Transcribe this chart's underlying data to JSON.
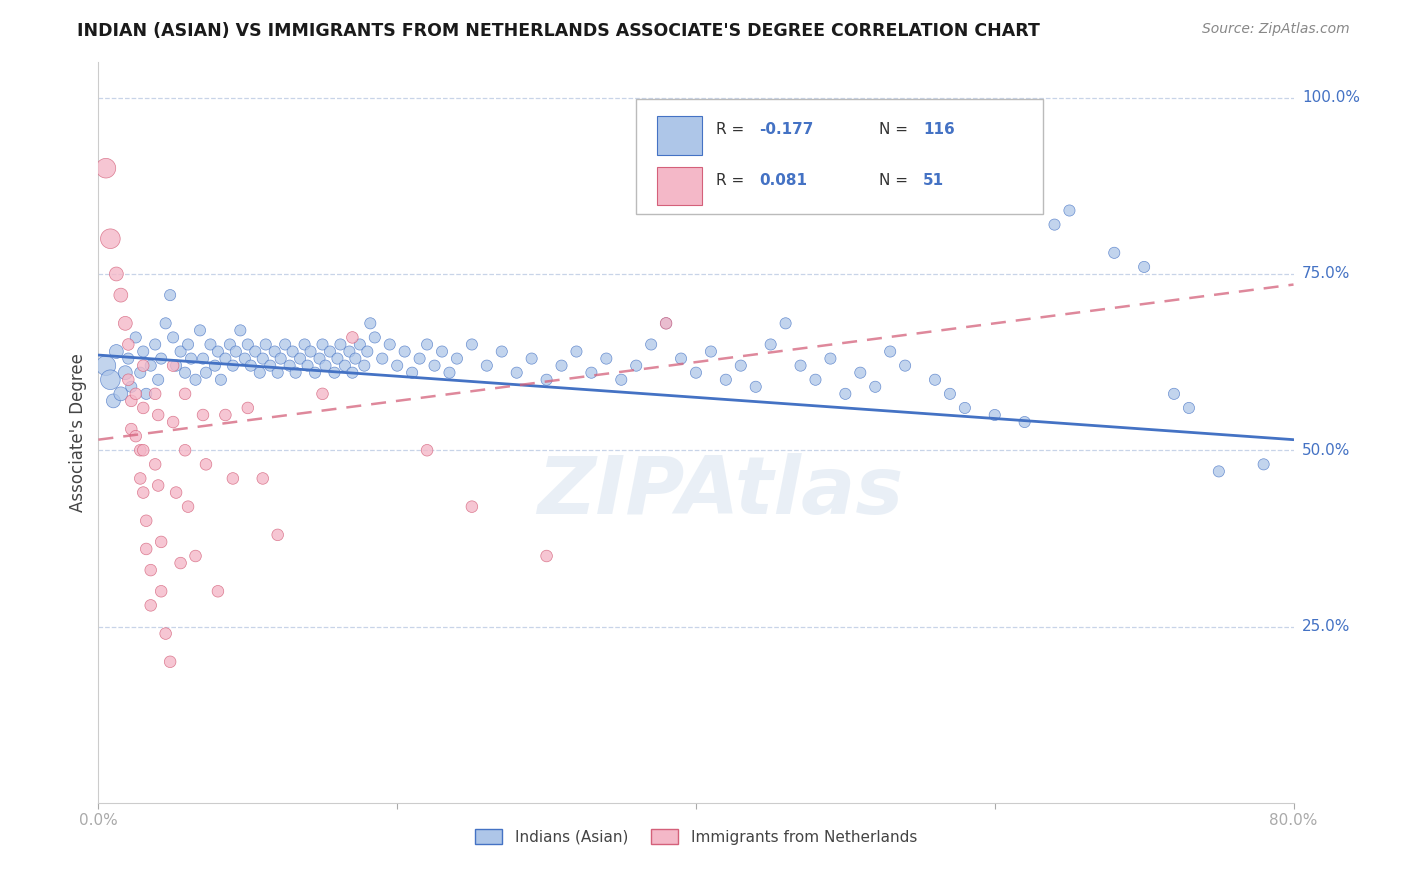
{
  "title": "INDIAN (ASIAN) VS IMMIGRANTS FROM NETHERLANDS ASSOCIATE'S DEGREE CORRELATION CHART",
  "source": "Source: ZipAtlas.com",
  "ylabel": "Associate's Degree",
  "legend_label_blue": "Indians (Asian)",
  "legend_label_pink": "Immigrants from Netherlands",
  "R_blue": "-0.177",
  "N_blue": "116",
  "R_pink": "0.081",
  "N_pink": "51",
  "watermark": "ZIPAtlas",
  "blue_color": "#aec6e8",
  "blue_line_color": "#4472c4",
  "pink_color": "#f4b8c8",
  "pink_line_color": "#d4607a",
  "background_color": "#ffffff",
  "grid_color": "#c8d4e8",
  "blue_trend": [
    0.635,
    0.515
  ],
  "pink_trend": [
    0.515,
    0.735
  ],
  "blue_scatter": [
    [
      0.005,
      0.62
    ],
    [
      0.008,
      0.6
    ],
    [
      0.01,
      0.57
    ],
    [
      0.012,
      0.64
    ],
    [
      0.015,
      0.58
    ],
    [
      0.018,
      0.61
    ],
    [
      0.02,
      0.63
    ],
    [
      0.022,
      0.59
    ],
    [
      0.025,
      0.66
    ],
    [
      0.028,
      0.61
    ],
    [
      0.03,
      0.64
    ],
    [
      0.032,
      0.58
    ],
    [
      0.035,
      0.62
    ],
    [
      0.038,
      0.65
    ],
    [
      0.04,
      0.6
    ],
    [
      0.042,
      0.63
    ],
    [
      0.045,
      0.68
    ],
    [
      0.048,
      0.72
    ],
    [
      0.05,
      0.66
    ],
    [
      0.052,
      0.62
    ],
    [
      0.055,
      0.64
    ],
    [
      0.058,
      0.61
    ],
    [
      0.06,
      0.65
    ],
    [
      0.062,
      0.63
    ],
    [
      0.065,
      0.6
    ],
    [
      0.068,
      0.67
    ],
    [
      0.07,
      0.63
    ],
    [
      0.072,
      0.61
    ],
    [
      0.075,
      0.65
    ],
    [
      0.078,
      0.62
    ],
    [
      0.08,
      0.64
    ],
    [
      0.082,
      0.6
    ],
    [
      0.085,
      0.63
    ],
    [
      0.088,
      0.65
    ],
    [
      0.09,
      0.62
    ],
    [
      0.092,
      0.64
    ],
    [
      0.095,
      0.67
    ],
    [
      0.098,
      0.63
    ],
    [
      0.1,
      0.65
    ],
    [
      0.102,
      0.62
    ],
    [
      0.105,
      0.64
    ],
    [
      0.108,
      0.61
    ],
    [
      0.11,
      0.63
    ],
    [
      0.112,
      0.65
    ],
    [
      0.115,
      0.62
    ],
    [
      0.118,
      0.64
    ],
    [
      0.12,
      0.61
    ],
    [
      0.122,
      0.63
    ],
    [
      0.125,
      0.65
    ],
    [
      0.128,
      0.62
    ],
    [
      0.13,
      0.64
    ],
    [
      0.132,
      0.61
    ],
    [
      0.135,
      0.63
    ],
    [
      0.138,
      0.65
    ],
    [
      0.14,
      0.62
    ],
    [
      0.142,
      0.64
    ],
    [
      0.145,
      0.61
    ],
    [
      0.148,
      0.63
    ],
    [
      0.15,
      0.65
    ],
    [
      0.152,
      0.62
    ],
    [
      0.155,
      0.64
    ],
    [
      0.158,
      0.61
    ],
    [
      0.16,
      0.63
    ],
    [
      0.162,
      0.65
    ],
    [
      0.165,
      0.62
    ],
    [
      0.168,
      0.64
    ],
    [
      0.17,
      0.61
    ],
    [
      0.172,
      0.63
    ],
    [
      0.175,
      0.65
    ],
    [
      0.178,
      0.62
    ],
    [
      0.18,
      0.64
    ],
    [
      0.182,
      0.68
    ],
    [
      0.185,
      0.66
    ],
    [
      0.19,
      0.63
    ],
    [
      0.195,
      0.65
    ],
    [
      0.2,
      0.62
    ],
    [
      0.205,
      0.64
    ],
    [
      0.21,
      0.61
    ],
    [
      0.215,
      0.63
    ],
    [
      0.22,
      0.65
    ],
    [
      0.225,
      0.62
    ],
    [
      0.23,
      0.64
    ],
    [
      0.235,
      0.61
    ],
    [
      0.24,
      0.63
    ],
    [
      0.25,
      0.65
    ],
    [
      0.26,
      0.62
    ],
    [
      0.27,
      0.64
    ],
    [
      0.28,
      0.61
    ],
    [
      0.29,
      0.63
    ],
    [
      0.3,
      0.6
    ],
    [
      0.31,
      0.62
    ],
    [
      0.32,
      0.64
    ],
    [
      0.33,
      0.61
    ],
    [
      0.34,
      0.63
    ],
    [
      0.35,
      0.6
    ],
    [
      0.36,
      0.62
    ],
    [
      0.37,
      0.65
    ],
    [
      0.38,
      0.68
    ],
    [
      0.39,
      0.63
    ],
    [
      0.4,
      0.61
    ],
    [
      0.41,
      0.64
    ],
    [
      0.42,
      0.6
    ],
    [
      0.43,
      0.62
    ],
    [
      0.44,
      0.59
    ],
    [
      0.45,
      0.65
    ],
    [
      0.46,
      0.68
    ],
    [
      0.47,
      0.62
    ],
    [
      0.48,
      0.6
    ],
    [
      0.49,
      0.63
    ],
    [
      0.5,
      0.58
    ],
    [
      0.51,
      0.61
    ],
    [
      0.52,
      0.59
    ],
    [
      0.53,
      0.64
    ],
    [
      0.54,
      0.62
    ],
    [
      0.56,
      0.6
    ],
    [
      0.57,
      0.58
    ],
    [
      0.58,
      0.56
    ],
    [
      0.6,
      0.55
    ],
    [
      0.62,
      0.54
    ],
    [
      0.64,
      0.82
    ],
    [
      0.65,
      0.84
    ],
    [
      0.68,
      0.78
    ],
    [
      0.7,
      0.76
    ],
    [
      0.72,
      0.58
    ],
    [
      0.73,
      0.56
    ],
    [
      0.75,
      0.47
    ],
    [
      0.78,
      0.48
    ]
  ],
  "pink_scatter": [
    [
      0.005,
      0.9
    ],
    [
      0.008,
      0.8
    ],
    [
      0.012,
      0.75
    ],
    [
      0.015,
      0.72
    ],
    [
      0.018,
      0.68
    ],
    [
      0.02,
      0.65
    ],
    [
      0.02,
      0.6
    ],
    [
      0.022,
      0.57
    ],
    [
      0.022,
      0.53
    ],
    [
      0.025,
      0.58
    ],
    [
      0.025,
      0.52
    ],
    [
      0.028,
      0.5
    ],
    [
      0.028,
      0.46
    ],
    [
      0.03,
      0.62
    ],
    [
      0.03,
      0.56
    ],
    [
      0.03,
      0.5
    ],
    [
      0.03,
      0.44
    ],
    [
      0.032,
      0.4
    ],
    [
      0.032,
      0.36
    ],
    [
      0.035,
      0.33
    ],
    [
      0.035,
      0.28
    ],
    [
      0.038,
      0.58
    ],
    [
      0.038,
      0.48
    ],
    [
      0.04,
      0.55
    ],
    [
      0.04,
      0.45
    ],
    [
      0.042,
      0.37
    ],
    [
      0.042,
      0.3
    ],
    [
      0.045,
      0.24
    ],
    [
      0.048,
      0.2
    ],
    [
      0.05,
      0.62
    ],
    [
      0.05,
      0.54
    ],
    [
      0.052,
      0.44
    ],
    [
      0.055,
      0.34
    ],
    [
      0.058,
      0.58
    ],
    [
      0.058,
      0.5
    ],
    [
      0.06,
      0.42
    ],
    [
      0.065,
      0.35
    ],
    [
      0.07,
      0.55
    ],
    [
      0.072,
      0.48
    ],
    [
      0.08,
      0.3
    ],
    [
      0.085,
      0.55
    ],
    [
      0.09,
      0.46
    ],
    [
      0.1,
      0.56
    ],
    [
      0.11,
      0.46
    ],
    [
      0.12,
      0.38
    ],
    [
      0.15,
      0.58
    ],
    [
      0.17,
      0.66
    ],
    [
      0.22,
      0.5
    ],
    [
      0.25,
      0.42
    ],
    [
      0.3,
      0.35
    ],
    [
      0.38,
      0.68
    ]
  ],
  "blue_sizes_large": [
    0.0,
    0.005
  ],
  "xlim": [
    0.0,
    0.8
  ],
  "ylim": [
    0.0,
    1.05
  ],
  "y_ticks": [
    0.25,
    0.5,
    0.75,
    1.0
  ],
  "y_tick_labels": [
    "25.0%",
    "50.0%",
    "75.0%",
    "100.0%"
  ]
}
